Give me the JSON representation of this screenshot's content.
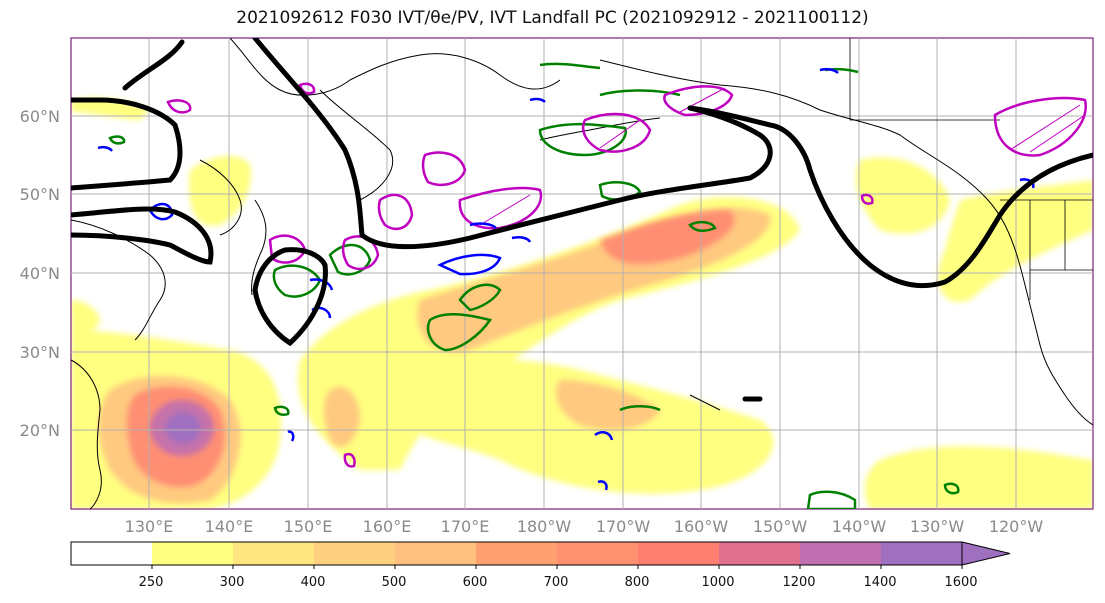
{
  "title": "2021092612 F030 IVT/θe/PV, IVT Landfall PC (2021092912 - 2021100112)",
  "map": {
    "lat_labels": [
      "60°N",
      "50°N",
      "40°N",
      "30°N",
      "20°N"
    ],
    "lon_labels": [
      "130°E",
      "140°E",
      "150°E",
      "160°E",
      "170°E",
      "180°W",
      "170°W",
      "160°W",
      "150°W",
      "140°W",
      "130°W",
      "120°W"
    ],
    "colors": {
      "theta_e_contour": "#000000",
      "pv_contour": "#0000ff",
      "green_contour": "#008000",
      "magenta_contour": "#c000c0",
      "gridline": "#b0b0b0",
      "coastline": "#000000"
    }
  },
  "colorbar": {
    "levels": [
      "250",
      "300",
      "400",
      "500",
      "600",
      "700",
      "800",
      "1000",
      "1200",
      "1400",
      "1600"
    ],
    "colors": [
      "#ffffff",
      "#ffff80",
      "#ffe680",
      "#ffd080",
      "#ffc080",
      "#ffa070",
      "#ff9070",
      "#ff8070",
      "#e07090",
      "#c070b0",
      "#a070c0"
    ],
    "extend": "max"
  }
}
